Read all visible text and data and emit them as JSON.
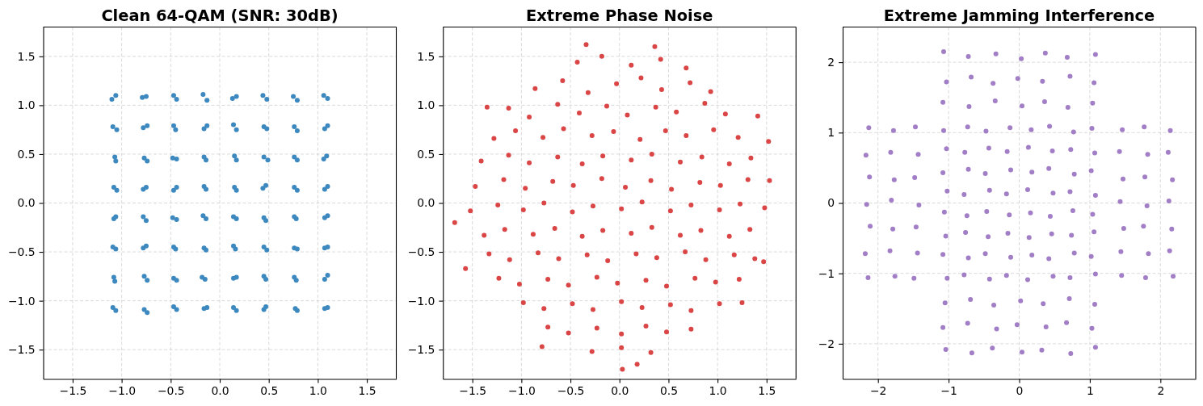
{
  "chart_data": [
    {
      "type": "scatter",
      "title": "Clean 64-QAM (SNR: 30dB)",
      "color": "#3d89bf",
      "marker": "circle",
      "grid": true,
      "xlim": [
        -1.8,
        1.8
      ],
      "ylim": [
        -1.8,
        1.8
      ],
      "xticks": [
        -1.5,
        {
          "value": -1,
          "label": "−1.0"
        },
        -0.5,
        {
          "value": 0,
          "label": "0.0"
        },
        0.5,
        {
          "value": 1,
          "label": "1.0"
        },
        1.5
      ],
      "yticks": [
        -1.5,
        {
          "value": -1,
          "label": "−1.0"
        },
        -0.5,
        {
          "value": 0,
          "label": "0.0"
        },
        0.5,
        {
          "value": 1,
          "label": "1.0"
        },
        1.5
      ],
      "x": [
        -1.1,
        -1.06,
        -0.79,
        -0.75,
        -0.47,
        -0.44,
        -0.17,
        -0.13,
        0.13,
        0.17,
        0.44,
        0.48,
        0.75,
        0.79,
        1.06,
        1.1,
        -1.09,
        -1.05,
        -0.78,
        -0.74,
        -0.47,
        -0.45,
        -0.16,
        -0.13,
        0.14,
        0.17,
        0.45,
        0.48,
        0.76,
        0.79,
        1.07,
        1.1,
        -1.07,
        -1.06,
        -0.77,
        -0.74,
        -0.48,
        -0.44,
        -0.16,
        -0.14,
        0.15,
        0.17,
        0.45,
        0.49,
        0.76,
        0.79,
        1.06,
        1.09,
        -1.08,
        -1.05,
        -0.78,
        -0.75,
        -0.47,
        -0.44,
        -0.16,
        -0.14,
        0.15,
        0.17,
        0.44,
        0.47,
        0.76,
        0.79,
        1.07,
        1.1,
        -1.08,
        -1.06,
        -0.78,
        -0.75,
        -0.48,
        -0.44,
        -0.17,
        -0.14,
        0.14,
        0.17,
        0.45,
        0.47,
        0.76,
        0.78,
        1.07,
        1.1,
        -1.09,
        -1.06,
        -0.78,
        -0.75,
        -0.47,
        -0.45,
        -0.16,
        -0.14,
        0.14,
        0.16,
        0.45,
        0.48,
        0.76,
        0.79,
        1.07,
        1.1,
        -1.08,
        -1.07,
        -0.77,
        -0.74,
        -0.47,
        -0.44,
        -0.18,
        -0.15,
        0.14,
        0.17,
        0.45,
        0.47,
        0.76,
        0.78,
        1.07,
        1.1,
        -1.09,
        -1.06,
        -0.77,
        -0.74,
        -0.47,
        -0.44,
        -0.16,
        -0.13,
        0.14,
        0.17,
        0.45,
        0.47,
        0.77,
        0.79,
        1.07,
        1.1
      ],
      "values": [
        1.06,
        1.1,
        1.08,
        1.09,
        1.1,
        1.06,
        1.11,
        1.05,
        1.07,
        1.09,
        1.1,
        1.06,
        1.09,
        1.05,
        1.1,
        1.07,
        0.78,
        0.75,
        0.77,
        0.79,
        0.79,
        0.75,
        0.76,
        0.79,
        0.8,
        0.75,
        0.78,
        0.76,
        0.78,
        0.74,
        0.76,
        0.79,
        0.47,
        0.43,
        0.46,
        0.43,
        0.46,
        0.45,
        0.47,
        0.44,
        0.48,
        0.44,
        0.47,
        0.44,
        0.47,
        0.44,
        0.45,
        0.48,
        0.16,
        0.13,
        0.14,
        0.16,
        0.13,
        0.16,
        0.17,
        0.14,
        0.16,
        0.13,
        0.15,
        0.18,
        0.16,
        0.13,
        0.14,
        0.17,
        -0.16,
        -0.14,
        -0.14,
        -0.18,
        -0.15,
        -0.17,
        -0.13,
        -0.16,
        -0.14,
        -0.16,
        -0.15,
        -0.18,
        -0.14,
        -0.16,
        -0.15,
        -0.13,
        -0.45,
        -0.47,
        -0.46,
        -0.44,
        -0.45,
        -0.47,
        -0.46,
        -0.48,
        -0.44,
        -0.47,
        -0.45,
        -0.48,
        -0.46,
        -0.47,
        -0.46,
        -0.45,
        -0.76,
        -0.8,
        -0.75,
        -0.79,
        -0.77,
        -0.79,
        -0.76,
        -0.78,
        -0.77,
        -0.76,
        -0.75,
        -0.78,
        -0.76,
        -0.79,
        -0.78,
        -0.74,
        -1.07,
        -1.1,
        -1.09,
        -1.12,
        -1.06,
        -1.09,
        -1.08,
        -1.07,
        -1.07,
        -1.1,
        -1.09,
        -1.06,
        -1.08,
        -1.1,
        -1.08,
        -1.07
      ]
    },
    {
      "type": "scatter",
      "title": "Extreme Phase Noise",
      "color": "#da4546",
      "marker": "circle",
      "grid": true,
      "xlim": [
        -1.8,
        1.8
      ],
      "ylim": [
        -1.8,
        1.8
      ],
      "xticks": [
        -1.5,
        {
          "value": -1,
          "label": "−1.0"
        },
        -0.5,
        {
          "value": 0,
          "label": "0.0"
        },
        0.5,
        {
          "value": 1,
          "label": "1.0"
        },
        1.5
      ],
      "yticks": [
        -1.5,
        {
          "value": -1,
          "label": "−1.0"
        },
        -0.5,
        {
          "value": 0,
          "label": "0.0"
        },
        0.5,
        {
          "value": 1,
          "label": "1.0"
        },
        1.5
      ],
      "x": [
        -0.43,
        -0.18,
        0.12,
        0.42,
        -0.86,
        -0.58,
        -0.32,
        -0.03,
        0.22,
        0.43,
        0.72,
        0.93,
        -1.13,
        -0.92,
        -0.63,
        -0.41,
        -0.13,
        0.08,
        0.37,
        0.58,
        0.87,
        1.08,
        -1.28,
        -1.06,
        -0.78,
        -0.57,
        -0.28,
        -0.06,
        0.21,
        0.47,
        0.68,
        0.96,
        1.21,
        -1.41,
        -1.13,
        -0.92,
        -0.63,
        -0.38,
        -0.17,
        0.12,
        0.33,
        0.62,
        0.84,
        1.12,
        1.34,
        -1.47,
        -1.18,
        -0.96,
        -0.68,
        -0.47,
        -0.18,
        0.06,
        0.32,
        0.53,
        0.82,
        1.03,
        1.31,
        -1.52,
        -1.24,
        -0.98,
        -0.77,
        -0.48,
        -0.27,
        0.02,
        0.23,
        0.52,
        0.73,
        1.02,
        1.23,
        1.48,
        -1.38,
        -1.17,
        -0.88,
        -0.66,
        -0.38,
        -0.17,
        0.12,
        0.33,
        0.62,
        0.83,
        1.12,
        1.33,
        -1.33,
        -1.12,
        -0.83,
        -0.62,
        -0.33,
        -0.12,
        0.17,
        0.38,
        0.67,
        0.88,
        1.17,
        1.38,
        -1.23,
        -1.02,
        -0.73,
        -0.52,
        -0.23,
        -0.02,
        0.27,
        0.48,
        0.77,
        0.98,
        1.22,
        -0.98,
        -0.77,
        -0.48,
        -0.27,
        0.02,
        0.23,
        0.52,
        0.73,
        1.02,
        -0.73,
        -0.52,
        -0.23,
        0.02,
        0.27,
        0.48,
        0.73,
        -0.28,
        0.02,
        0.32,
        -1.68,
        0.03,
        -0.34,
        0.36,
        1.53,
        1.52,
        1.41,
        -1.57,
        1.47,
        0.18,
        -0.79,
        1.25,
        0.68,
        -1.35
      ],
      "values": [
        1.44,
        1.5,
        1.41,
        1.47,
        1.17,
        1.25,
        1.13,
        1.22,
        1.28,
        1.16,
        1.23,
        1.14,
        0.97,
        0.88,
        1.01,
        0.92,
        0.99,
        0.9,
        0.98,
        0.93,
        1.02,
        0.91,
        0.66,
        0.74,
        0.67,
        0.76,
        0.69,
        0.73,
        0.65,
        0.74,
        0.69,
        0.75,
        0.67,
        0.43,
        0.49,
        0.41,
        0.47,
        0.4,
        0.48,
        0.44,
        0.5,
        0.42,
        0.47,
        0.4,
        0.46,
        0.17,
        0.24,
        0.15,
        0.22,
        0.18,
        0.25,
        0.16,
        0.23,
        0.14,
        0.21,
        0.18,
        0.24,
        -0.08,
        -0.02,
        -0.07,
        0.0,
        -0.09,
        -0.03,
        -0.06,
        0.01,
        -0.08,
        -0.02,
        -0.07,
        -0.01,
        -0.05,
        -0.33,
        -0.27,
        -0.32,
        -0.26,
        -0.34,
        -0.28,
        -0.31,
        -0.25,
        -0.33,
        -0.28,
        -0.34,
        -0.27,
        -0.52,
        -0.58,
        -0.51,
        -0.57,
        -0.53,
        -0.59,
        -0.52,
        -0.56,
        -0.5,
        -0.58,
        -0.53,
        -0.57,
        -0.77,
        -0.83,
        -0.78,
        -0.84,
        -0.76,
        -0.82,
        -0.79,
        -0.85,
        -0.77,
        -0.81,
        -0.78,
        -1.02,
        -1.08,
        -1.03,
        -1.09,
        -1.01,
        -1.07,
        -1.04,
        -1.1,
        -1.03,
        -1.27,
        -1.33,
        -1.28,
        -1.34,
        -1.26,
        -1.32,
        -1.29,
        -1.52,
        -1.48,
        -1.53,
        -0.2,
        -1.7,
        1.62,
        1.6,
        0.23,
        0.63,
        0.89,
        -0.67,
        -0.6,
        -1.65,
        -1.47,
        -1.02,
        1.38,
        0.98
      ]
    },
    {
      "type": "scatter",
      "title": "Extreme Jamming Interference",
      "color": "#a17ec6",
      "marker": "circle",
      "grid": true,
      "xlim": [
        -2.5,
        2.5
      ],
      "ylim": [
        -2.5,
        2.5
      ],
      "xticks": [
        -2,
        -1,
        0,
        1,
        2
      ],
      "yticks": [
        -2,
        -1,
        0,
        1,
        2
      ],
      "x": [
        -1.07,
        -0.72,
        -0.33,
        0.03,
        0.37,
        0.68,
        1.08,
        -1.03,
        -0.68,
        -0.37,
        -0.02,
        0.33,
        0.72,
        1.06,
        -1.08,
        -0.71,
        -0.34,
        0.04,
        0.36,
        0.69,
        1.04,
        -1.05,
        -0.69,
        -0.36,
        0.02,
        0.34,
        0.71,
        1.07,
        -1.08,
        -0.73,
        -0.32,
        -0.03,
        0.38,
        0.67,
        1.03,
        -1.04,
        -0.67,
        -0.38,
        0.04,
        0.32,
        0.73,
        1.08,
        -2.13,
        -2.17,
        -2.12,
        -2.16,
        -2.11,
        -2.18,
        -2.14,
        -1.78,
        -1.82,
        -1.77,
        -1.81,
        -1.79,
        -1.83,
        -1.76,
        -1.47,
        -1.43,
        -1.48,
        -1.42,
        -1.46,
        -1.44,
        -1.49,
        1.46,
        1.42,
        1.47,
        1.43,
        1.48,
        1.44,
        1.45,
        1.77,
        1.82,
        1.78,
        1.81,
        1.76,
        1.83,
        1.79,
        2.14,
        2.11,
        2.17,
        2.12,
        2.16,
        2.13,
        2.18,
        -1.07,
        -0.73,
        -0.47,
        -0.13,
        0.17,
        0.43,
        0.77,
        1.03,
        -1.03,
        -0.77,
        -0.43,
        -0.17,
        0.13,
        0.47,
        0.73,
        1.07,
        -1.08,
        -0.72,
        -0.48,
        -0.12,
        0.18,
        0.42,
        0.78,
        1.02,
        -1.02,
        -0.78,
        -0.42,
        -0.18,
        0.12,
        0.48,
        0.72,
        1.08,
        -1.06,
        -0.74,
        -0.46,
        -0.14,
        0.16,
        0.44,
        0.76,
        1.04,
        -1.04,
        -0.76,
        -0.44,
        -0.16,
        0.14,
        0.46,
        0.74,
        1.06,
        -1.08,
        -0.72,
        -0.48,
        -0.12,
        0.18,
        0.42,
        0.78,
        1.02,
        -1.02,
        -0.78,
        -0.42,
        -0.18,
        0.12,
        0.48,
        0.72,
        1.08
      ],
      "values": [
        2.15,
        2.08,
        2.12,
        2.05,
        2.13,
        2.07,
        2.11,
        1.72,
        1.79,
        1.7,
        1.77,
        1.73,
        1.8,
        1.71,
        1.43,
        1.37,
        1.45,
        1.38,
        1.44,
        1.36,
        1.42,
        -1.42,
        -1.37,
        -1.45,
        -1.39,
        -1.43,
        -1.36,
        -1.44,
        -1.77,
        -1.71,
        -1.79,
        -1.73,
        -1.76,
        -1.7,
        -1.78,
        -2.08,
        -2.13,
        -2.06,
        -2.12,
        -2.09,
        -2.14,
        -2.05,
        1.07,
        0.68,
        0.37,
        -0.02,
        -0.33,
        -0.72,
        -1.06,
        1.03,
        0.72,
        0.33,
        0.04,
        -0.37,
        -0.68,
        -1.04,
        1.08,
        0.69,
        0.36,
        -0.03,
        -0.34,
        -0.71,
        -1.07,
        1.04,
        0.73,
        0.34,
        0.02,
        -0.36,
        -0.69,
        -1.03,
        1.08,
        0.69,
        0.37,
        -0.04,
        -0.33,
        -0.72,
        -1.06,
        1.03,
        0.72,
        0.33,
        0.03,
        -0.37,
        -0.68,
        -1.04,
        1.03,
        1.08,
        1.02,
        1.07,
        1.04,
        1.09,
        1.01,
        1.06,
        0.77,
        0.72,
        0.78,
        0.73,
        0.79,
        0.74,
        0.76,
        0.71,
        0.43,
        0.48,
        0.42,
        0.47,
        0.44,
        0.49,
        0.41,
        0.46,
        0.17,
        0.12,
        0.18,
        0.13,
        0.19,
        0.14,
        0.16,
        0.11,
        -0.13,
        -0.18,
        -0.12,
        -0.17,
        -0.14,
        -0.19,
        -0.11,
        -0.16,
        -0.47,
        -0.42,
        -0.48,
        -0.43,
        -0.49,
        -0.44,
        -0.46,
        -0.41,
        -0.73,
        -0.78,
        -0.72,
        -0.77,
        -0.74,
        -0.79,
        -0.71,
        -0.76,
        -1.07,
        -1.02,
        -1.08,
        -1.03,
        -1.09,
        -1.04,
        -1.06,
        -1.01
      ]
    }
  ]
}
